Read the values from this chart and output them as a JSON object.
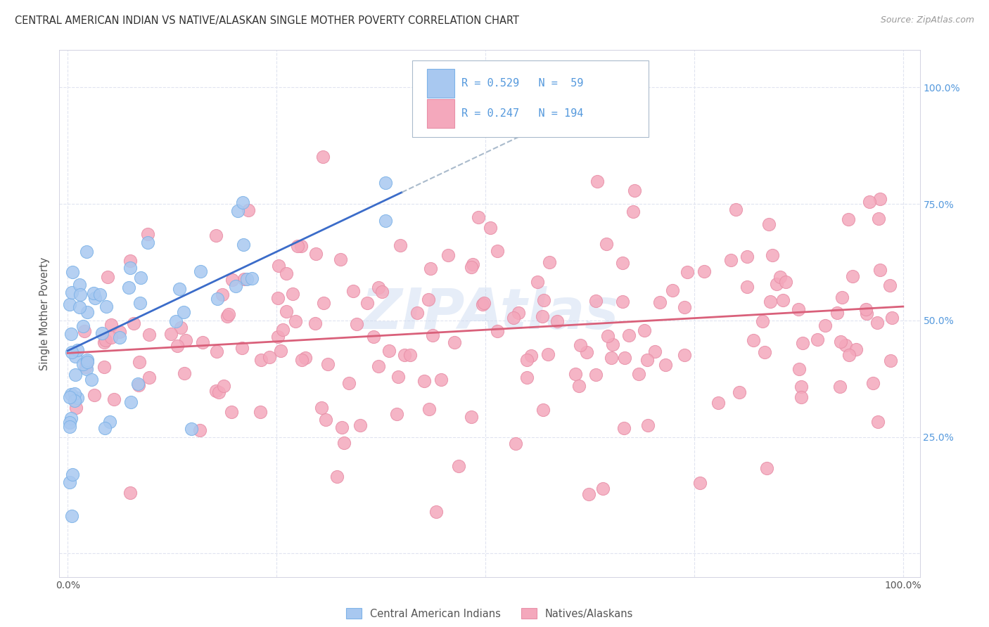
{
  "title": "CENTRAL AMERICAN INDIAN VS NATIVE/ALASKAN SINGLE MOTHER POVERTY CORRELATION CHART",
  "source": "Source: ZipAtlas.com",
  "ylabel": "Single Mother Poverty",
  "blue_color": "#A8C8F0",
  "blue_edge_color": "#7EB3E8",
  "pink_color": "#F4A8BC",
  "pink_edge_color": "#E890A8",
  "blue_line_color": "#3B6CC9",
  "pink_line_color": "#D9607A",
  "dash_color": "#AABBCC",
  "right_tick_color": "#5599DD",
  "watermark_color": "#C8D8F0",
  "grid_color": "#E0E4F0",
  "legend_edge_color": "#AABBCC",
  "title_color": "#333333",
  "source_color": "#999999",
  "ylabel_color": "#555555",
  "tick_color": "#555555",
  "bottom_legend_color": "#555555",
  "blue_intercept": 0.435,
  "blue_slope": 0.85,
  "pink_intercept": 0.43,
  "pink_slope": 0.1,
  "xlim_lo": -0.01,
  "xlim_hi": 1.02,
  "ylim_lo": -0.05,
  "ylim_hi": 1.08
}
